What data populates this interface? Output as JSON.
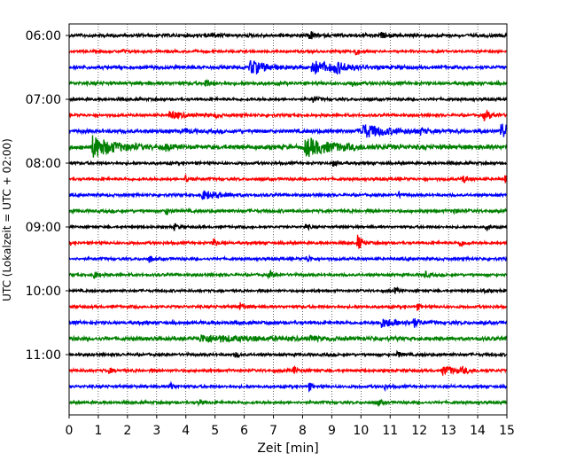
{
  "chart_data": {
    "type": "line",
    "title": "",
    "xlabel": "Zeit  [min]",
    "ylabel": "UTC (Lokalzeit = UTC + 02:00)",
    "xlim": [
      0,
      15
    ],
    "x_ticks": [
      "0",
      "1",
      "2",
      "3",
      "4",
      "5",
      "6",
      "7",
      "8",
      "9",
      "10",
      "11",
      "12",
      "13",
      "14",
      "15"
    ],
    "y_ticks": [
      "06:00",
      "07:00",
      "08:00",
      "09:00",
      "10:00",
      "11:00"
    ],
    "grid": "vertical dotted",
    "trace_interval_minutes": 15,
    "start_time_utc": "06:00",
    "trace_colors": [
      "#000000",
      "#ff0000",
      "#0000ff",
      "#008000"
    ],
    "series": [
      {
        "start": "06:00",
        "color": "#000000",
        "noise": 0.3,
        "events": [
          {
            "t": 4.9,
            "amp": 0.5
          },
          {
            "t": 8.25,
            "amp": 0.9
          },
          {
            "t": 10.7,
            "amp": 0.45
          }
        ]
      },
      {
        "start": "06:15",
        "color": "#ff0000",
        "noise": 0.22,
        "events": [
          {
            "t": 1.85,
            "amp": 0.35
          },
          {
            "t": 9.8,
            "amp": 0.8
          }
        ]
      },
      {
        "start": "06:30",
        "color": "#0000ff",
        "noise": 0.3,
        "events": [
          {
            "t": 6.2,
            "amp": 1.4,
            "dur": 0.5
          },
          {
            "t": 8.3,
            "amp": 1.3,
            "dur": 0.6
          },
          {
            "t": 9.1,
            "amp": 0.9,
            "dur": 0.4
          }
        ]
      },
      {
        "start": "06:45",
        "color": "#008000",
        "noise": 0.3,
        "events": [
          {
            "t": 4.65,
            "amp": 0.9
          },
          {
            "t": 9.7,
            "amp": 0.45
          }
        ]
      },
      {
        "start": "07:00",
        "color": "#000000",
        "noise": 0.25,
        "events": [
          {
            "t": 8.35,
            "amp": 0.8
          }
        ]
      },
      {
        "start": "07:15",
        "color": "#ff0000",
        "noise": 0.25,
        "events": [
          {
            "t": 3.45,
            "amp": 0.8,
            "dur": 0.4
          },
          {
            "t": 5.0,
            "amp": 0.4
          },
          {
            "t": 14.2,
            "amp": 0.8,
            "dur": 0.3
          }
        ]
      },
      {
        "start": "07:30",
        "color": "#0000ff",
        "noise": 0.35,
        "events": [
          {
            "t": 4.0,
            "amp": 0.45
          },
          {
            "t": 10.0,
            "amp": 1.3,
            "dur": 0.8
          },
          {
            "t": 12.0,
            "amp": 0.6
          },
          {
            "t": 14.8,
            "amp": 1.5,
            "dur": 0.5
          }
        ]
      },
      {
        "start": "07:45",
        "color": "#008000",
        "noise": 0.4,
        "events": [
          {
            "t": 0.8,
            "amp": 2.0,
            "dur": 0.7
          },
          {
            "t": 3.3,
            "amp": 0.55
          },
          {
            "t": 8.1,
            "amp": 1.6,
            "dur": 0.9
          }
        ]
      },
      {
        "start": "08:00",
        "color": "#000000",
        "noise": 0.25,
        "events": [
          {
            "t": 9.05,
            "amp": 0.85
          }
        ]
      },
      {
        "start": "08:15",
        "color": "#ff0000",
        "noise": 0.25,
        "events": [
          {
            "t": 4.0,
            "amp": 0.8
          },
          {
            "t": 13.5,
            "amp": 0.8
          },
          {
            "t": 14.95,
            "amp": 0.9
          }
        ]
      },
      {
        "start": "08:30",
        "color": "#0000ff",
        "noise": 0.25,
        "events": [
          {
            "t": 4.55,
            "amp": 0.8,
            "dur": 0.6
          },
          {
            "t": 11.3,
            "amp": 0.45
          }
        ]
      },
      {
        "start": "08:45",
        "color": "#008000",
        "noise": 0.28,
        "events": [
          {
            "t": 3.3,
            "amp": 0.8
          },
          {
            "t": 13.15,
            "amp": 0.5
          }
        ]
      },
      {
        "start": "09:00",
        "color": "#000000",
        "noise": 0.22,
        "events": [
          {
            "t": 3.6,
            "amp": 0.6
          },
          {
            "t": 8.1,
            "amp": 0.6
          },
          {
            "t": 14.3,
            "amp": 0.5
          }
        ]
      },
      {
        "start": "09:15",
        "color": "#ff0000",
        "noise": 0.25,
        "events": [
          {
            "t": 4.95,
            "amp": 0.7
          },
          {
            "t": 9.9,
            "amp": 1.6
          },
          {
            "t": 13.4,
            "amp": 0.7
          }
        ]
      },
      {
        "start": "09:30",
        "color": "#0000ff",
        "noise": 0.25,
        "events": [
          {
            "t": 2.75,
            "amp": 0.6
          },
          {
            "t": 8.15,
            "amp": 0.7
          }
        ]
      },
      {
        "start": "09:45",
        "color": "#008000",
        "noise": 0.25,
        "events": [
          {
            "t": 0.85,
            "amp": 0.7
          },
          {
            "t": 6.85,
            "amp": 0.75
          },
          {
            "t": 12.2,
            "amp": 0.6
          }
        ]
      },
      {
        "start": "10:00",
        "color": "#000000",
        "noise": 0.22,
        "events": [
          {
            "t": 11.15,
            "amp": 0.5
          },
          {
            "t": 14.2,
            "amp": 0.55
          }
        ]
      },
      {
        "start": "10:15",
        "color": "#ff0000",
        "noise": 0.25,
        "events": [
          {
            "t": 5.85,
            "amp": 0.8
          },
          {
            "t": 11.9,
            "amp": 0.6
          }
        ]
      },
      {
        "start": "10:30",
        "color": "#0000ff",
        "noise": 0.3,
        "events": [
          {
            "t": 10.7,
            "amp": 0.8,
            "dur": 0.6
          },
          {
            "t": 11.8,
            "amp": 0.8
          }
        ]
      },
      {
        "start": "10:45",
        "color": "#008000",
        "noise": 0.35,
        "events": [
          {
            "t": 4.5,
            "amp": 0.55,
            "dur": 1.8
          },
          {
            "t": 8.3,
            "amp": 0.45
          }
        ]
      },
      {
        "start": "11:00",
        "color": "#000000",
        "noise": 0.25,
        "events": [
          {
            "t": 5.7,
            "amp": 0.45
          },
          {
            "t": 11.25,
            "amp": 0.6
          }
        ]
      },
      {
        "start": "11:15",
        "color": "#ff0000",
        "noise": 0.25,
        "events": [
          {
            "t": 1.35,
            "amp": 0.55
          },
          {
            "t": 7.7,
            "amp": 0.6
          },
          {
            "t": 12.8,
            "amp": 0.8,
            "dur": 0.5
          },
          {
            "t": 13.5,
            "amp": 0.5
          }
        ]
      },
      {
        "start": "11:30",
        "color": "#0000ff",
        "noise": 0.25,
        "events": [
          {
            "t": 3.45,
            "amp": 0.7
          },
          {
            "t": 8.2,
            "amp": 0.8
          },
          {
            "t": 10.8,
            "amp": 0.5
          }
        ]
      },
      {
        "start": "11:45",
        "color": "#008000",
        "noise": 0.25,
        "events": [
          {
            "t": 4.45,
            "amp": 0.5
          },
          {
            "t": 10.6,
            "amp": 0.5
          }
        ]
      }
    ]
  }
}
